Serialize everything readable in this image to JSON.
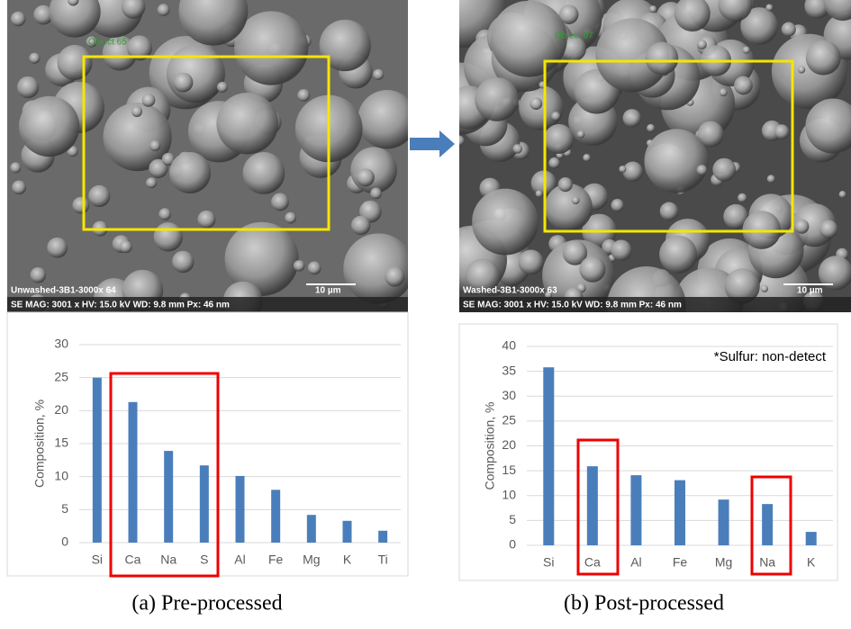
{
  "images": [
    {
      "object_label": "Object 65",
      "sample_label": "Unwashed-3B1-3000x 64",
      "scale_bar": "10 µm",
      "info_bar": "SE MAG: 3001 x HV: 15.0 kV WD: 9.8 mm Px: 46 nm"
    },
    {
      "object_label": "Object 67",
      "sample_label": "Washed-3B1-3000x 63",
      "scale_bar": "10 µm",
      "info_bar": "SE MAG: 3001 x HV: 15.0 kV WD: 9.8 mm Px: 46 nm"
    }
  ],
  "chart_data": [
    {
      "type": "bar",
      "y_label": "Composition, %",
      "categories": [
        "Si",
        "Ca",
        "Na",
        "S",
        "Al",
        "Fe",
        "Mg",
        "K",
        "Ti"
      ],
      "values": [
        25,
        21.3,
        13.9,
        11.7,
        10.1,
        8,
        4.2,
        3.3,
        1.8
      ],
      "color": "#4a7ebb",
      "ylim": [
        0,
        30
      ],
      "yticks": [
        0,
        5,
        10,
        15,
        20,
        25,
        30
      ],
      "grid": true
    },
    {
      "type": "bar",
      "y_label": "Composition, %",
      "annotation": "*Sulfur: non-detect",
      "categories": [
        "Si",
        "Ca",
        "Al",
        "Fe",
        "Mg",
        "Na",
        "K"
      ],
      "values": [
        35.8,
        15.9,
        14.1,
        13.1,
        9.2,
        8.3,
        2.7
      ],
      "color": "#4a7ebb",
      "ylim": [
        0,
        40
      ],
      "yticks": [
        0,
        5,
        10,
        15,
        20,
        25,
        30,
        35,
        40
      ],
      "grid": true
    }
  ],
  "captions": [
    "(a) Pre-processed",
    "(b) Post-processed"
  ]
}
